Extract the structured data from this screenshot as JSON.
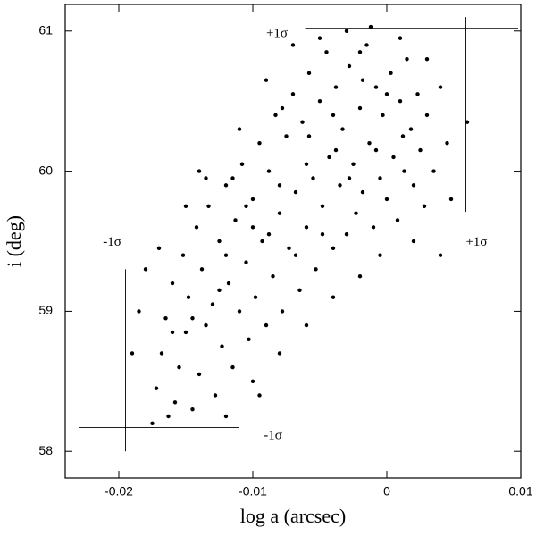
{
  "chart_data": {
    "type": "scatter",
    "xlabel": "log a (arcsec)",
    "ylabel": "i (deg)",
    "color": "#000000",
    "xlim": [
      -0.024,
      0.01
    ],
    "ylim": [
      57.81,
      61.19
    ],
    "xticks": [
      -0.02,
      -0.01,
      0,
      0.01
    ],
    "yticks": [
      58,
      59,
      60,
      61
    ],
    "x": [
      -0.0175,
      -0.0172,
      -0.0168,
      -0.0165,
      -0.016,
      -0.0158,
      -0.0155,
      -0.0152,
      -0.015,
      -0.0148,
      -0.0145,
      -0.0142,
      -0.014,
      -0.0138,
      -0.0135,
      -0.0133,
      -0.013,
      -0.0128,
      -0.0125,
      -0.0123,
      -0.012,
      -0.0118,
      -0.0115,
      -0.0113,
      -0.011,
      -0.0108,
      -0.0105,
      -0.0103,
      -0.01,
      -0.0098,
      -0.0095,
      -0.0093,
      -0.009,
      -0.0088,
      -0.0085,
      -0.0083,
      -0.008,
      -0.0078,
      -0.0075,
      -0.0073,
      -0.007,
      -0.0068,
      -0.0065,
      -0.0063,
      -0.006,
      -0.0058,
      -0.0055,
      -0.0053,
      -0.005,
      -0.0048,
      -0.0045,
      -0.0043,
      -0.004,
      -0.0038,
      -0.0035,
      -0.0033,
      -0.003,
      -0.0028,
      -0.0025,
      -0.0023,
      -0.002,
      -0.0018,
      -0.0015,
      -0.0013,
      -0.001,
      -0.0008,
      -0.0005,
      -0.0003,
      0,
      0.0003,
      0.0005,
      0.0008,
      0.001,
      0.0013,
      0.0015,
      0.0018,
      0.002,
      0.0023,
      0.0025,
      0.0028,
      0.003,
      0.0035,
      0.004,
      0.0045,
      0.0048,
      -0.019,
      -0.0185,
      -0.018,
      -0.017,
      -0.0163,
      -0.014,
      -0.012,
      -0.011,
      -0.01,
      -0.009,
      -0.008,
      -0.007,
      -0.006,
      -0.005,
      -0.004,
      -0.003,
      -0.002,
      -0.0012,
      -0.0005,
      0.001,
      0.002,
      0.003,
      0.004,
      0.006,
      -0.0095,
      -0.0115,
      -0.0135,
      -0.015,
      -0.0078,
      -0.0058,
      -0.0038,
      -0.0018,
      -0.0088,
      -0.0068,
      -0.0048,
      -0.0028,
      -0.0008,
      0.0012,
      -0.0105,
      -0.0125,
      -0.0145,
      -0.016,
      -0.006,
      -0.004,
      -0.002,
      0,
      -0.008,
      -0.01,
      -0.012
    ],
    "values": [
      58.2,
      58.45,
      58.7,
      58.95,
      59.2,
      58.35,
      58.6,
      59.4,
      58.85,
      59.1,
      58.3,
      59.6,
      58.55,
      59.3,
      58.9,
      59.75,
      59.05,
      58.4,
      59.5,
      58.75,
      59.9,
      59.2,
      58.6,
      59.65,
      59.0,
      60.05,
      59.35,
      58.8,
      59.8,
      59.1,
      60.2,
      59.5,
      58.9,
      60.0,
      59.25,
      60.4,
      59.7,
      59.0,
      60.25,
      59.45,
      60.55,
      59.85,
      59.15,
      60.35,
      59.6,
      60.7,
      59.95,
      59.3,
      60.5,
      59.75,
      60.85,
      60.1,
      59.45,
      60.6,
      59.9,
      60.3,
      59.55,
      60.75,
      60.05,
      59.7,
      60.45,
      59.85,
      60.9,
      60.2,
      59.6,
      60.6,
      59.95,
      60.4,
      59.8,
      60.7,
      60.1,
      59.65,
      60.5,
      60.0,
      60.8,
      60.3,
      59.9,
      60.55,
      60.15,
      59.75,
      60.4,
      60.0,
      60.6,
      60.2,
      59.8,
      58.7,
      59.0,
      59.3,
      59.45,
      58.25,
      60.0,
      58.25,
      60.3,
      58.5,
      60.65,
      58.7,
      60.9,
      58.9,
      60.95,
      59.1,
      61.0,
      59.25,
      61.03,
      59.4,
      60.95,
      59.5,
      60.8,
      59.4,
      60.35,
      58.4,
      59.95,
      59.95,
      59.75,
      60.45,
      60.25,
      60.15,
      60.65,
      59.55,
      59.4,
      59.55,
      59.95,
      60.15,
      60.25,
      59.75,
      59.15,
      58.95,
      58.85,
      60.05,
      60.4,
      60.85,
      60.55,
      59.9,
      59.6,
      59.4
    ],
    "sigma_lines": [
      {
        "x": [
          -0.0061,
          0.0098
        ],
        "y": [
          61.02,
          61.02
        ]
      },
      {
        "x": [
          0.0059,
          0.0059
        ],
        "y": [
          61.1,
          59.71
        ]
      },
      {
        "x": [
          -0.0195,
          -0.0195
        ],
        "y": [
          59.3,
          58.0
        ]
      },
      {
        "x": [
          -0.023,
          -0.011
        ],
        "y": [
          58.17,
          58.17
        ]
      }
    ],
    "annotations": [
      {
        "text": "+1σ",
        "x": -0.0082,
        "y": 60.98
      },
      {
        "text": "+1σ",
        "x": 0.0067,
        "y": 59.49
      },
      {
        "text": "-1σ",
        "x": -0.0205,
        "y": 59.49
      },
      {
        "text": "-1σ",
        "x": -0.0085,
        "y": 58.11
      }
    ]
  }
}
